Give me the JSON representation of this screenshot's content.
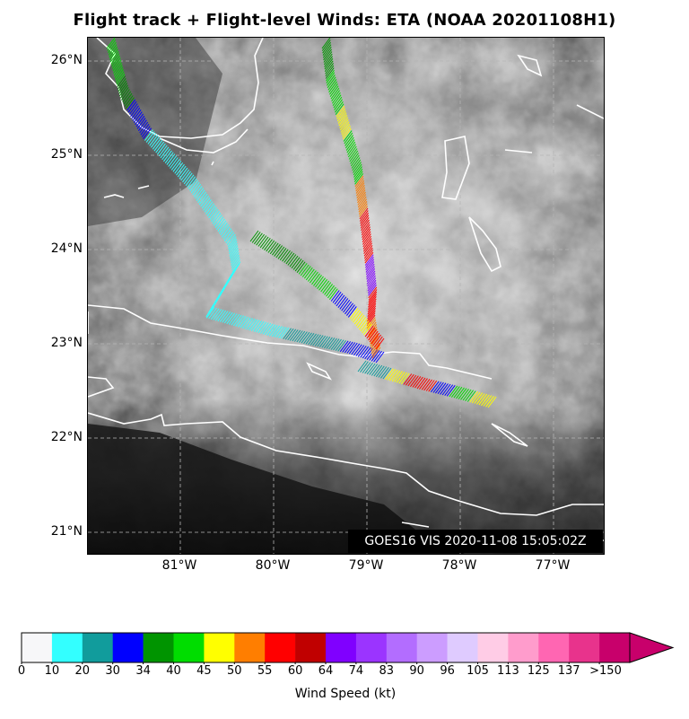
{
  "title": "Flight track + Flight-level Winds: ETA (NOAA 20201108H1)",
  "map": {
    "lat_labels": [
      "26°N",
      "25°N",
      "24°N",
      "23°N",
      "22°N",
      "21°N"
    ],
    "lon_labels": [
      "81°W",
      "80°W",
      "79°W",
      "78°W",
      "77°W"
    ],
    "satellite_stamp": "GOES16 VIS 2020-11-08 15:05:02Z",
    "coastline_color": "#ffffff",
    "gridline_style": "dashed"
  },
  "colorbar": {
    "label": "Wind Speed (kt)",
    "ticks": [
      "0",
      "10",
      "20",
      "30",
      "34",
      "40",
      "45",
      "50",
      "55",
      "60",
      "64",
      "74",
      "83",
      "90",
      "96",
      "105",
      "113",
      "125",
      "137",
      ">150"
    ],
    "colors": [
      "#f7f7f9",
      "#33ffff",
      "#119c9c",
      "#0000ff",
      "#009400",
      "#00dd00",
      "#ffff00",
      "#ff7e00",
      "#ff0000",
      "#c00000",
      "#8000ff",
      "#9b34ff",
      "#b36dff",
      "#cc9dff",
      "#dfcbff",
      "#ffcce6",
      "#ff9ccc",
      "#ff66b2",
      "#e8338c",
      "#c8006b"
    ],
    "extend": "max"
  },
  "legend_colors": {
    "cyan": "#33ffff",
    "teal": "#119c9c",
    "blue": "#0000ff",
    "dkgreen": "#009400",
    "green": "#00dd00",
    "yellow": "#ffff00",
    "orange": "#ff7e00",
    "red": "#ff0000",
    "dkred": "#c00000",
    "purple": "#8000ff"
  }
}
